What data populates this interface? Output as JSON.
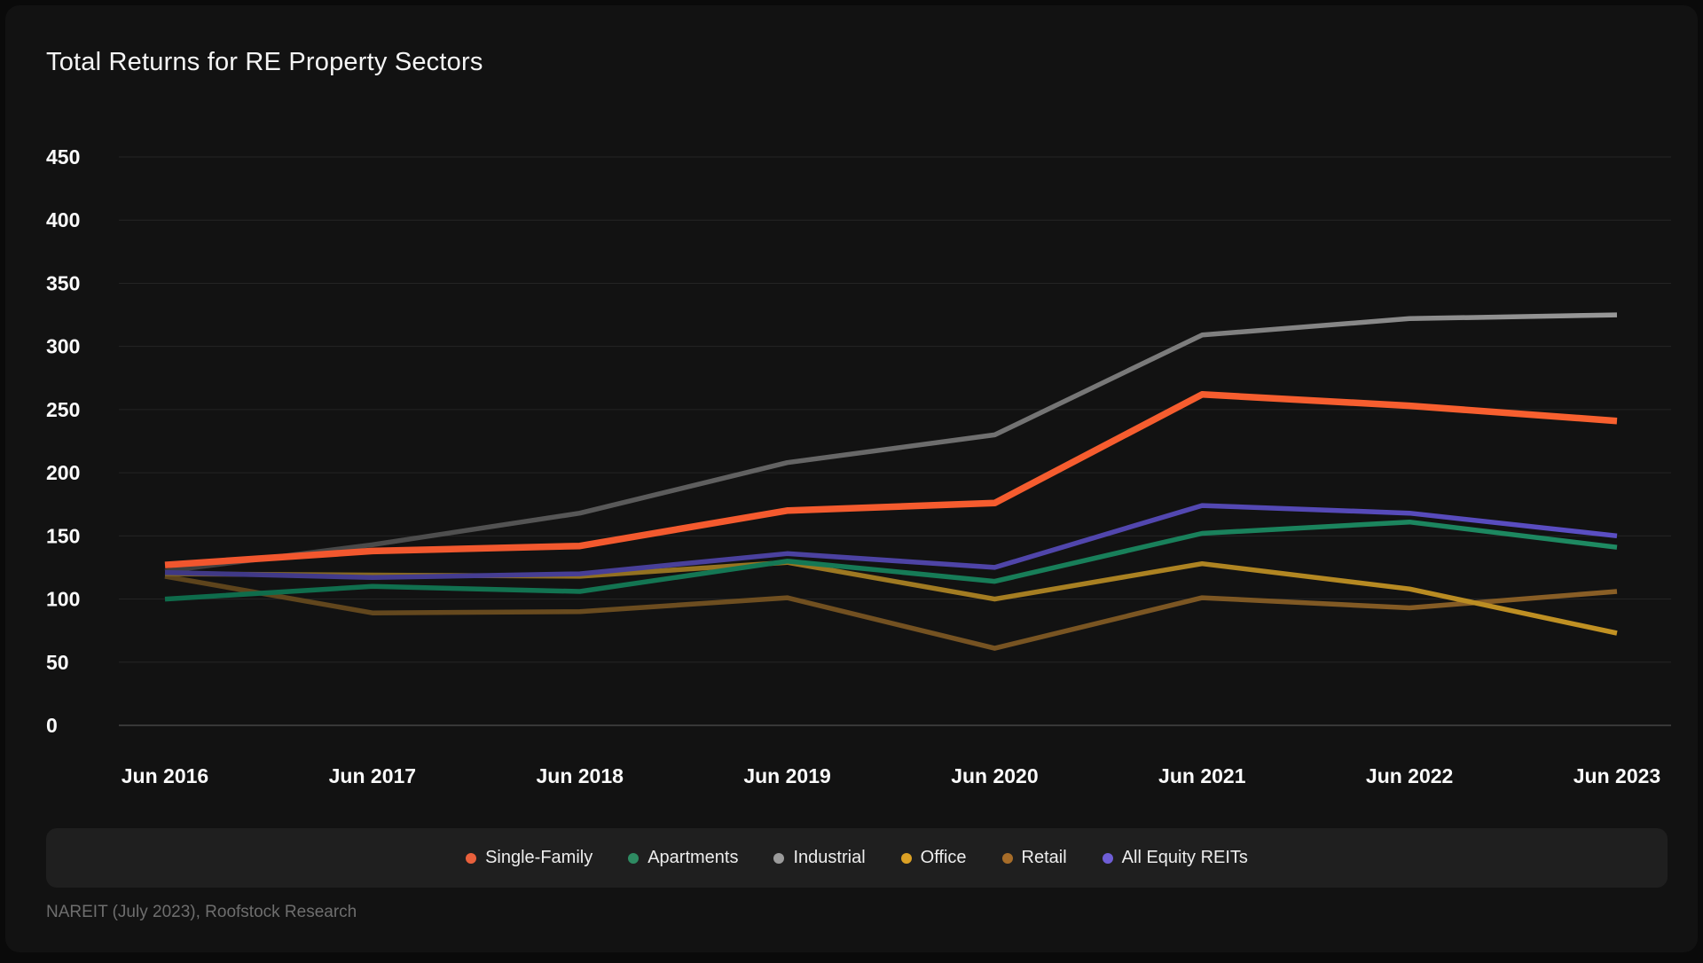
{
  "header": {
    "title": "Total Returns for RE Property Sectors"
  },
  "footer": {
    "source_text": "NAREIT (July 2023), Roofstock Research"
  },
  "colors": {
    "page_background": "#0a0a0a",
    "card_background": "#121212",
    "legend_bar_background": "#1f1f1f",
    "gridline": "#242424",
    "axis_zero_line": "#454545",
    "tick_label": "#fafafa",
    "footer_text": "#6e6e6e",
    "legend_text": "#ededed"
  },
  "chart_data": {
    "type": "line",
    "title": "Total Returns for RE Property Sectors",
    "x_labels": [
      "Jun 2016",
      "Jun 2017",
      "Jun 2018",
      "Jun 2019",
      "Jun 2020",
      "Jun 2021",
      "Jun 2022",
      "Jun 2023"
    ],
    "y_ticks": [
      450,
      400,
      350,
      300,
      250,
      200,
      150,
      100,
      50,
      0
    ],
    "ylim": [
      0,
      450
    ],
    "grid": "horizontal-only",
    "legend_position": "bottom-center",
    "source": "NAREIT (July 2023), Roofstock Research",
    "series": [
      {
        "name": "Single-Family",
        "line_color": "#f1562e",
        "line_color_end": "#f8602f",
        "dot_color": "#e9603c",
        "width": 7.5,
        "values": [
          127,
          138,
          142,
          170,
          176,
          262,
          253,
          241
        ]
      },
      {
        "name": "Apartments",
        "line_color": "#0e6b4b",
        "line_color_end": "#1e8a62",
        "dot_color": "#2e8b62",
        "width": 5.5,
        "values": [
          100,
          110,
          106,
          130,
          114,
          152,
          161,
          141
        ]
      },
      {
        "name": "Industrial",
        "line_color": "#3d3d3d",
        "line_color_end": "#989898",
        "dot_color": "#9b9b9b",
        "width": 5.5,
        "values": [
          122,
          143,
          168,
          208,
          230,
          309,
          322,
          325
        ]
      },
      {
        "name": "Office",
        "line_color": "#7c6120",
        "line_color_end": "#c29223",
        "dot_color": "#dca125",
        "width": 5.5,
        "values": [
          120,
          119,
          118,
          129,
          100,
          128,
          108,
          73
        ]
      },
      {
        "name": "Retail",
        "line_color": "#5c431c",
        "line_color_end": "#8a5f26",
        "dot_color": "#a76d29",
        "width": 5.5,
        "values": [
          118,
          89,
          90,
          101,
          61,
          101,
          93,
          106
        ]
      },
      {
        "name": "All Equity REITs",
        "line_color": "#3f3884",
        "line_color_end": "#5b4ec4",
        "dot_color": "#6f5ed6",
        "width": 5.5,
        "values": [
          121,
          117,
          120,
          136,
          125,
          174,
          168,
          150
        ]
      }
    ]
  }
}
